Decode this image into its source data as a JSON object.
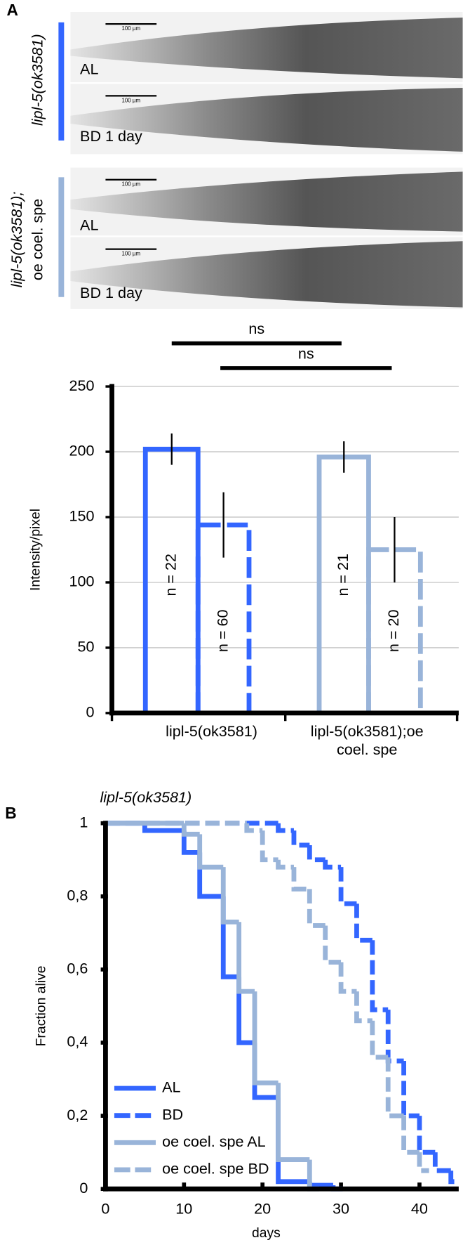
{
  "panel_a": {
    "label": "A",
    "groups": [
      {
        "name": "lipl-5(ok3581)",
        "images": [
          {
            "label": "AL",
            "scale_bar": "100 µm"
          },
          {
            "label": "BD 1 day",
            "scale_bar": "100 µm"
          }
        ]
      },
      {
        "name_lines": [
          "lipl-5(ok3581);",
          "oe coel. spe"
        ],
        "images": [
          {
            "label": "AL",
            "scale_bar": "100 µm"
          },
          {
            "label": "BD 1 day",
            "scale_bar": "100 µm"
          }
        ]
      }
    ]
  },
  "panel_b": {
    "label": "B"
  },
  "chart_data": [
    {
      "type": "bar",
      "ylabel": "Intensity/pixel",
      "ylim": [
        0,
        250
      ],
      "yticks": [
        0,
        50,
        100,
        150,
        200,
        250
      ],
      "grid": true,
      "categories": [
        "lipl-5(ok3581)",
        "lipl-5(ok3581);oe coel. spe"
      ],
      "colors": [
        "#3366ff",
        "#99b4d9"
      ],
      "series": [
        {
          "dashed": false,
          "values": [
            202,
            196
          ],
          "errors": [
            12,
            12
          ],
          "labels": [
            "n = 22",
            "n = 21"
          ]
        },
        {
          "dashed": true,
          "values": [
            144,
            125
          ],
          "errors": [
            25,
            25
          ],
          "labels": [
            "n = 60",
            "n = 20"
          ]
        }
      ],
      "annotations": [
        "ns",
        "ns"
      ]
    },
    {
      "type": "step",
      "title": "lipl-5(ok3581)",
      "xlabel": "days",
      "ylabel": "Fraction alive",
      "xlim": [
        0,
        45
      ],
      "xticks": [
        0,
        10,
        20,
        30,
        40
      ],
      "ylim": [
        0,
        1
      ],
      "yticks": [
        0,
        {
          "value": 0.2,
          "label": "0,2"
        },
        {
          "value": 0.4,
          "label": "0,4"
        },
        {
          "value": 0.6,
          "label": "0,6"
        },
        {
          "value": 0.8,
          "label": "0,8"
        },
        1
      ],
      "legend": "lower left",
      "series": [
        {
          "name": "AL",
          "color": "#3366ff",
          "dashed": false,
          "x": [
            0,
            5,
            10,
            12,
            15,
            17,
            19,
            22,
            26,
            29
          ],
          "values": [
            1,
            0.98,
            0.92,
            0.8,
            0.58,
            0.4,
            0.25,
            0.02,
            0.01,
            0
          ]
        },
        {
          "name": "BD",
          "color": "#3366ff",
          "dashed": true,
          "x": [
            0,
            22,
            24,
            26,
            28,
            30,
            32,
            34,
            36,
            38,
            40,
            42,
            44
          ],
          "values": [
            1,
            0.98,
            0.94,
            0.9,
            0.88,
            0.78,
            0.68,
            0.49,
            0.35,
            0.2,
            0.1,
            0.05,
            0.02
          ]
        },
        {
          "name": "oe coel. spe AL",
          "color": "#99b4d9",
          "dashed": false,
          "x": [
            0,
            10,
            12,
            15,
            17,
            19,
            22,
            26
          ],
          "values": [
            1,
            0.97,
            0.88,
            0.73,
            0.54,
            0.29,
            0.08,
            0
          ]
        },
        {
          "name": "oe coel. spe BD",
          "color": "#99b4d9",
          "dashed": true,
          "x": [
            0,
            18,
            20,
            22,
            24,
            26,
            28,
            30,
            32,
            34,
            36,
            38,
            40
          ],
          "values": [
            1,
            0.98,
            0.9,
            0.88,
            0.82,
            0.72,
            0.62,
            0.54,
            0.46,
            0.36,
            0.2,
            0.1,
            0.05
          ]
        }
      ]
    }
  ]
}
